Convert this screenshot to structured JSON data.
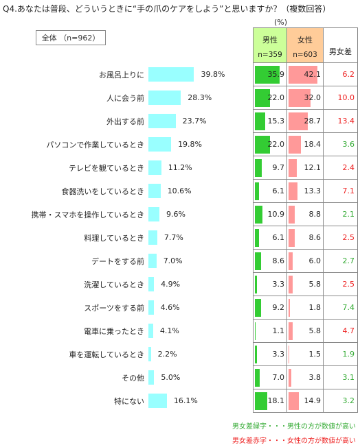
{
  "title": "Q4.あなたは普段、どういうときに“手の爪のケアをしよう”と思いますか？（複数回答）",
  "total_label": "全体 （n=962）",
  "unit": "(%)",
  "headers": {
    "male": "男性",
    "male_n": "n=359",
    "female": "女性",
    "female_n": "n=603",
    "diff": "男女差"
  },
  "colors": {
    "total_bar": "#99ffff",
    "male_bar": "#33cc33",
    "female_bar": "#ff9999",
    "male_header": "#ccff99",
    "female_header": "#ffcc99",
    "diff_green": "#33aa33",
    "diff_red": "#ee2222"
  },
  "legend": {
    "green": "男女差緑字・・・男性の方が数値が高い",
    "red": "男女差赤字・・・女性の方が数値が高い"
  },
  "chart_data": {
    "type": "bar",
    "categories": [
      "お風呂上りに",
      "人に会う前",
      "外出する前",
      "パソコンで作業しているとき",
      "テレビを観ているとき",
      "食器洗いをしているとき",
      "携帯・スマホを操作しているとき",
      "料理しているとき",
      "デートをする前",
      "洗濯しているとき",
      "スポーツをする前",
      "電車に乗ったとき",
      "車を運転しているとき",
      "その他",
      "特にない"
    ],
    "total": [
      "39.8%",
      "28.3%",
      "23.7%",
      "19.8%",
      "11.2%",
      "10.6%",
      "9.6%",
      "7.7%",
      "7.0%",
      "4.9%",
      "4.6%",
      "4.1%",
      "2.2%",
      "5.0%",
      "16.1%"
    ],
    "male": [
      "35.9",
      "22.0",
      "15.3",
      "22.0",
      "9.7",
      "6.1",
      "10.9",
      "6.1",
      "8.6",
      "3.3",
      "9.2",
      "1.1",
      "3.3",
      "7.0",
      "18.1"
    ],
    "female": [
      "42.1",
      "32.0",
      "28.7",
      "18.4",
      "12.1",
      "13.3",
      "8.8",
      "8.6",
      "6.0",
      "5.8",
      "1.8",
      "5.8",
      "1.5",
      "3.8",
      "14.9"
    ],
    "diff": [
      "6.2",
      "10.0",
      "13.4",
      "3.6",
      "2.4",
      "7.1",
      "2.1",
      "2.5",
      "2.7",
      "2.5",
      "7.4",
      "4.7",
      "1.9",
      "3.1",
      "3.2"
    ],
    "diff_higher": [
      "female",
      "female",
      "female",
      "male",
      "female",
      "female",
      "male",
      "female",
      "male",
      "female",
      "male",
      "female",
      "male",
      "male",
      "male"
    ]
  }
}
